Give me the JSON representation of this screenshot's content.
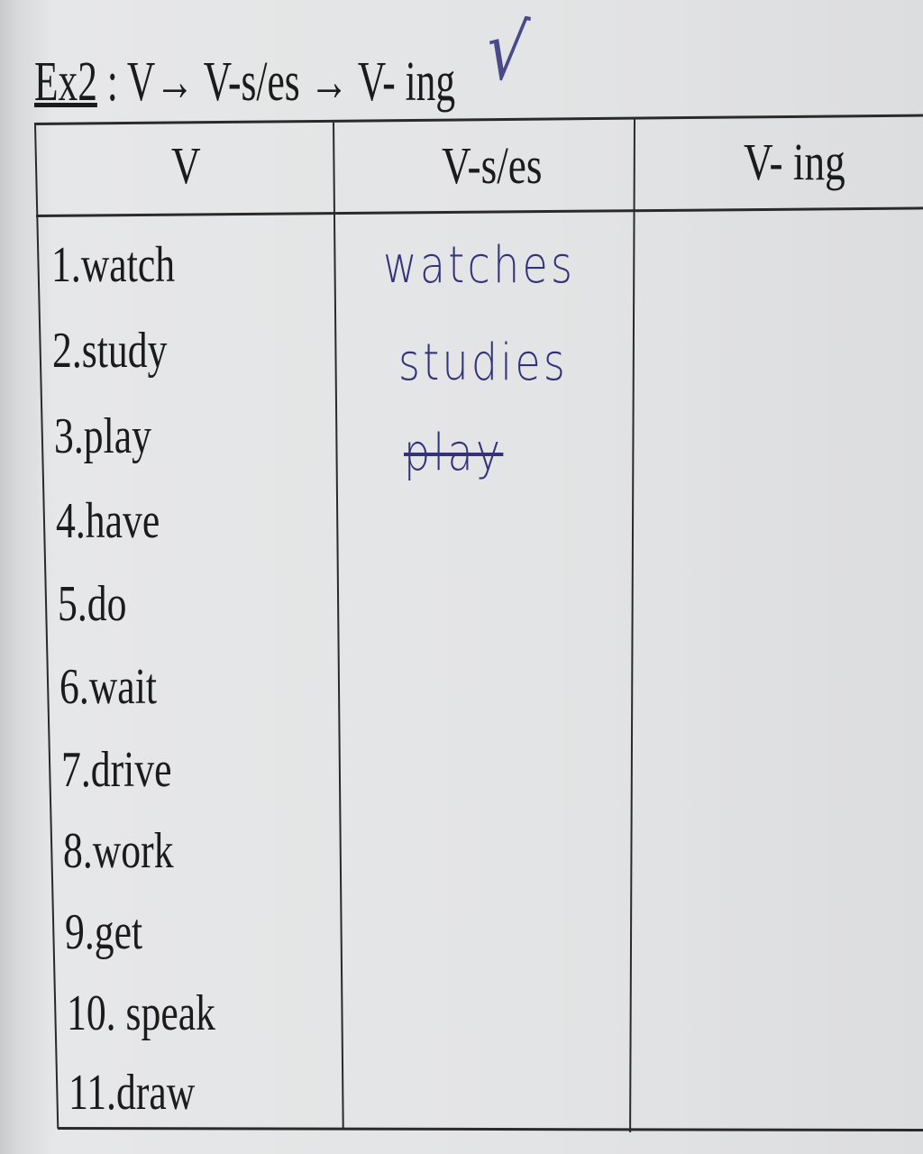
{
  "exercise": {
    "label": "Ex2",
    "title_rest": " : V→ V-s/es → V- ing",
    "check_mark": "√"
  },
  "table": {
    "headers": [
      "V",
      "V-s/es",
      "V- ing"
    ],
    "verbs": [
      "1.watch",
      "2.study",
      "3.play",
      "4.have",
      "5.do",
      "6.wait",
      "7.drive",
      "8.work",
      "9.get",
      "10. speak",
      "11.draw"
    ],
    "handwritten_answers": [
      {
        "text": "watches",
        "crossed_out": false
      },
      {
        "text": "studies",
        "crossed_out": false
      },
      {
        "text": "play",
        "crossed_out": true
      }
    ],
    "ink_color": "#34337a"
  }
}
